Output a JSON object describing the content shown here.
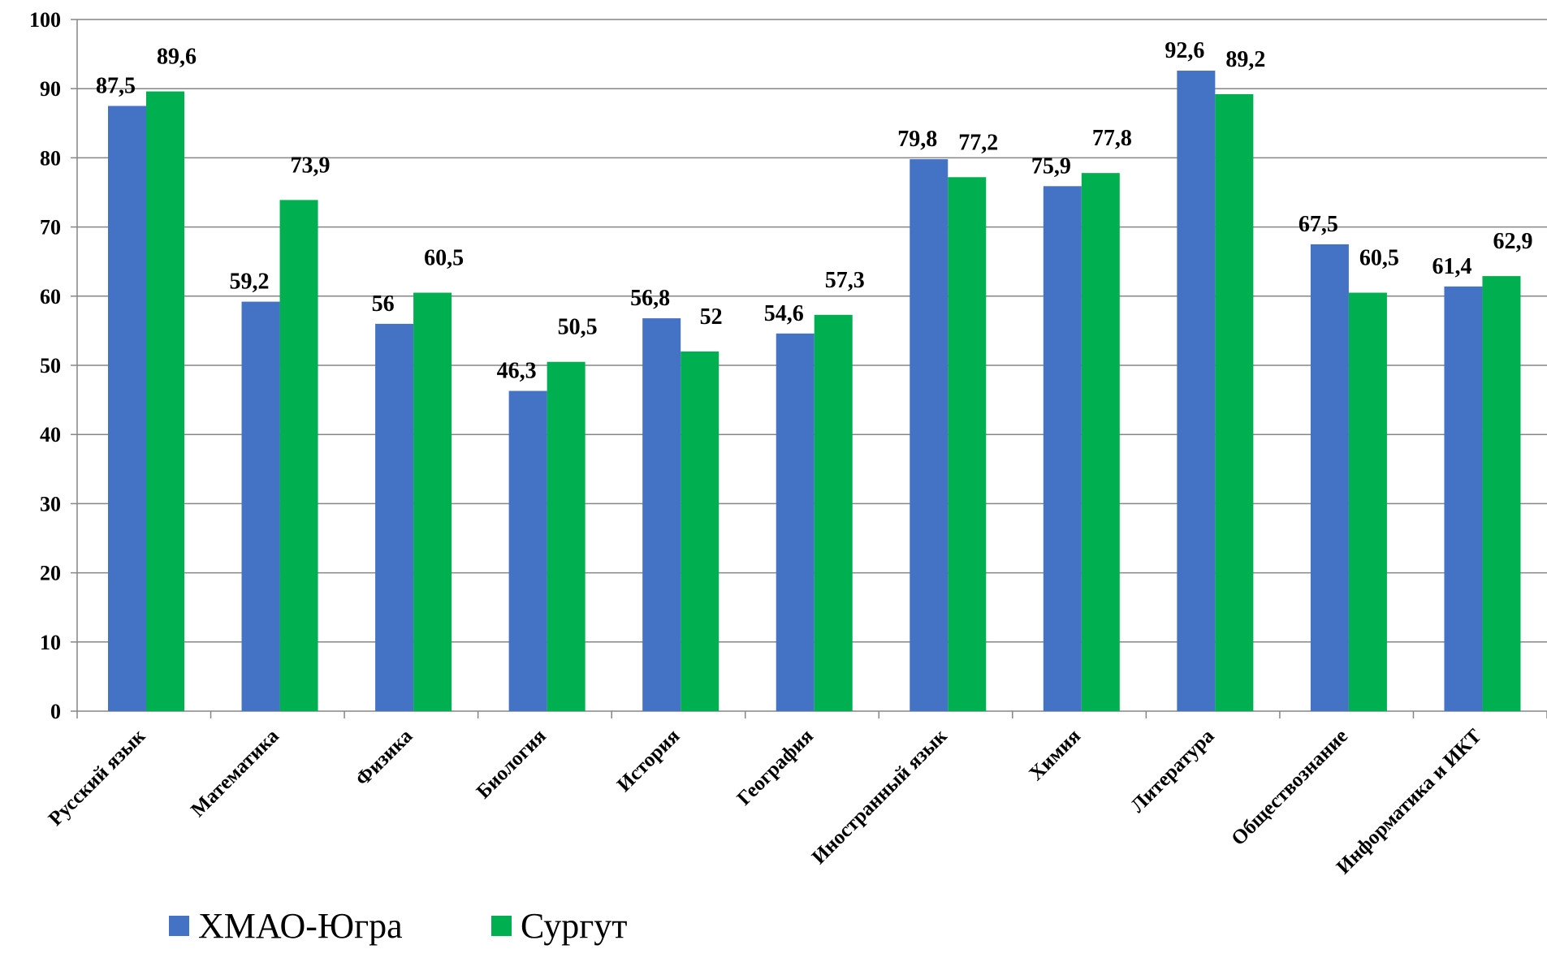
{
  "chart_data": {
    "type": "bar",
    "categories": [
      "Русский язык",
      "Математика",
      "Физика",
      "Биология",
      "История",
      "География",
      "Иностранный язык",
      "Химия",
      "Литература",
      "Обществознание",
      "Информатика и ИКТ"
    ],
    "series": [
      {
        "name": "ХМАО-Югра",
        "color": "#4472C4",
        "values": [
          87.5,
          59.2,
          56,
          46.3,
          56.8,
          54.6,
          79.8,
          75.9,
          92.6,
          67.5,
          61.4
        ],
        "labels": [
          "87,5",
          "59,2",
          "56",
          "46,3",
          "56,8",
          "54,6",
          "79,8",
          "75,9",
          "92,6",
          "67,5",
          "61,4"
        ]
      },
      {
        "name": "Сургут",
        "color": "#00B050",
        "values": [
          89.6,
          73.9,
          60.5,
          50.5,
          52,
          57.3,
          77.2,
          77.8,
          89.2,
          60.5,
          62.9
        ],
        "labels": [
          "89,6",
          "73,9",
          "60,5",
          "50,5",
          "52",
          "57,3",
          "77,2",
          "77,8",
          "89,2",
          "60,5",
          "62,9"
        ]
      }
    ],
    "yticks": [
      "0",
      "10",
      "20",
      "30",
      "40",
      "50",
      "60",
      "70",
      "80",
      "90",
      "100"
    ],
    "ylim": [
      0,
      100
    ],
    "grid": true,
    "legend": "bottom-left",
    "title": "",
    "xlabel": "",
    "ylabel": ""
  }
}
